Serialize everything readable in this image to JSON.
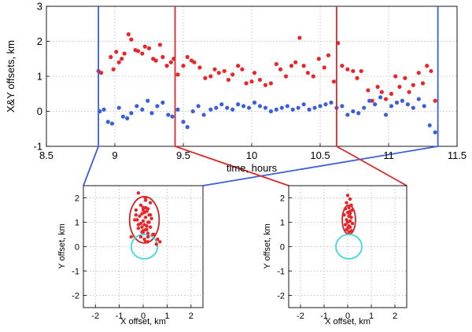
{
  "chart_data": [
    {
      "type": "scatter",
      "title": "",
      "xlabel": "time, hours",
      "ylabel": "X&Y offsets, km",
      "xlim": [
        8.5,
        11.5
      ],
      "ylim": [
        -1,
        3
      ],
      "xticks": [
        "8.5",
        "9",
        "9.5",
        "10",
        "10.5",
        "11",
        "11.5"
      ],
      "yticks": [
        "-1",
        "0",
        "1",
        "2",
        "3"
      ],
      "grid": true,
      "series": [
        {
          "name": "Y offset",
          "color": "#e8262b",
          "x": [
            8.88,
            8.9,
            8.97,
            8.99,
            9.01,
            9.03,
            9.05,
            9.07,
            9.1,
            9.12,
            9.15,
            9.17,
            9.2,
            9.22,
            9.25,
            9.28,
            9.3,
            9.33,
            9.35,
            9.38,
            9.41,
            9.43,
            9.46,
            9.5,
            9.53,
            9.56,
            9.58,
            9.62,
            9.66,
            9.7,
            9.73,
            9.76,
            9.8,
            9.83,
            9.86,
            9.9,
            9.93,
            9.96,
            10.0,
            10.02,
            10.06,
            10.1,
            10.14,
            10.18,
            10.21,
            10.25,
            10.29,
            10.32,
            10.35,
            10.38,
            10.41,
            10.45,
            10.49,
            10.53,
            10.56,
            10.6,
            10.63,
            10.66,
            10.7,
            10.74,
            10.77,
            10.8,
            10.85,
            10.88,
            10.92,
            10.95,
            10.98,
            11.02,
            11.05,
            11.08,
            11.12,
            11.15,
            11.18,
            11.22,
            11.25,
            11.28,
            11.31,
            11.34
          ],
          "values": [
            1.15,
            1.1,
            1.55,
            1.2,
            1.7,
            1.4,
            1.5,
            1.65,
            2.2,
            2.05,
            1.75,
            1.72,
            1.65,
            1.85,
            1.8,
            1.5,
            1.45,
            1.9,
            1.55,
            1.3,
            1.4,
            1.5,
            1.05,
            1.3,
            1.55,
            1.45,
            1.4,
            1.25,
            0.95,
            1.0,
            1.2,
            1.1,
            1.15,
            0.9,
            1.05,
            1.3,
            1.2,
            0.8,
            0.85,
            1.1,
            0.9,
            0.75,
            0.8,
            1.35,
            1.2,
            1.0,
            1.3,
            1.4,
            2.1,
            1.3,
            1.1,
            1.0,
            1.5,
            1.25,
            1.6,
            0.85,
            1.95,
            1.3,
            1.2,
            1.15,
            0.95,
            1.15,
            0.6,
            0.3,
            0.7,
            0.55,
            0.35,
            0.5,
            1.0,
            0.7,
            0.95,
            0.55,
            0.75,
            1.1,
            0.8,
            1.3,
            1.15,
            0.3
          ]
        },
        {
          "name": "X offset",
          "color": "#3b5fd9",
          "x": [
            8.89,
            8.92,
            8.95,
            8.98,
            9.03,
            9.06,
            9.09,
            9.12,
            9.16,
            9.2,
            9.24,
            9.27,
            9.31,
            9.35,
            9.39,
            9.42,
            9.46,
            9.5,
            9.53,
            9.57,
            9.61,
            9.65,
            9.7,
            9.74,
            9.78,
            9.82,
            9.86,
            9.9,
            9.94,
            9.98,
            10.02,
            10.06,
            10.1,
            10.14,
            10.18,
            10.22,
            10.26,
            10.3,
            10.34,
            10.38,
            10.42,
            10.46,
            10.5,
            10.54,
            10.58,
            10.62,
            10.66,
            10.7,
            10.74,
            10.78,
            10.82,
            10.86,
            10.9,
            10.94,
            10.98,
            11.02,
            11.06,
            11.1,
            11.14,
            11.18,
            11.22,
            11.26,
            11.3,
            11.34
          ],
          "values": [
            0.0,
            0.05,
            -0.3,
            -0.35,
            0.1,
            -0.15,
            -0.2,
            -0.05,
            0.15,
            0.05,
            0.3,
            -0.05,
            0.15,
            0.25,
            -0.1,
            -0.15,
            0.05,
            -0.3,
            -0.45,
            0.0,
            0.15,
            -0.1,
            0.05,
            0.1,
            0.2,
            0.1,
            0.05,
            0.2,
            0.15,
            0.1,
            0.25,
            0.15,
            0.1,
            0.0,
            0.05,
            0.1,
            0.15,
            0.05,
            0.1,
            0.2,
            0.05,
            0.1,
            0.15,
            0.2,
            0.25,
            0.1,
            0.15,
            -0.1,
            0.0,
            -0.05,
            0.1,
            0.3,
            0.2,
            0.4,
            -0.1,
            0.15,
            0.25,
            0.3,
            0.2,
            0.1,
            0.35,
            0.15,
            -0.4,
            -0.6
          ]
        }
      ]
    },
    {
      "type": "scatter",
      "title": "",
      "xlabel": "X offset, km",
      "ylabel": "Y offset, km",
      "xlim": [
        -2.5,
        2.5
      ],
      "ylim": [
        -2.5,
        2.5
      ],
      "xticks": [
        "-2",
        "-1",
        "0",
        "1",
        "2"
      ],
      "yticks": [
        "-2",
        "-1",
        "0",
        "1",
        "2"
      ],
      "grid": true,
      "ellipses": [
        {
          "name": "red error ellipse",
          "color": "#d02020",
          "cx": 0.05,
          "cy": 1.1,
          "rx": 0.62,
          "ry": 0.95
        },
        {
          "name": "cyan reference ellipse",
          "color": "#40d8e0",
          "cx": 0.05,
          "cy": 0.0,
          "rx": 0.55,
          "ry": 0.5
        }
      ],
      "series": [
        {
          "name": "offsets",
          "color": "#e8262b",
          "x": [
            -0.2,
            0.1,
            0.3,
            -0.1,
            0.0,
            0.2,
            -0.3,
            0.15,
            0.05,
            -0.05,
            0.25,
            -0.15,
            0.1,
            0.35,
            -0.25,
            0.0,
            0.2,
            -0.1,
            0.05,
            0.15,
            0.3,
            -0.2,
            0.1,
            0.0,
            -0.05,
            0.2,
            0.4,
            -0.3,
            0.1,
            0.25,
            -0.1,
            0.05,
            0.15,
            -0.2,
            0.3,
            0.0,
            0.2,
            -0.35,
            0.1,
            -0.05,
            0.6,
            0.7,
            0.45,
            -0.5,
            0.55,
            0.1,
            0.2,
            0.0
          ],
          "values": [
            2.2,
            2.0,
            1.8,
            1.7,
            1.6,
            1.55,
            1.5,
            1.45,
            1.4,
            1.35,
            1.3,
            1.25,
            1.2,
            1.15,
            1.1,
            1.05,
            1.0,
            0.95,
            0.9,
            0.85,
            0.8,
            0.75,
            0.7,
            0.65,
            0.6,
            0.55,
            0.5,
            1.3,
            1.9,
            1.0,
            0.4,
            0.3,
            0.7,
            0.9,
            1.3,
            1.5,
            0.2,
            1.1,
            1.6,
            0.8,
            0.3,
            0.2,
            0.5,
            0.4,
            0.1,
            0.2,
            0.4,
            0.6
          ]
        }
      ]
    },
    {
      "type": "scatter",
      "title": "",
      "xlabel": "X offset, km",
      "ylabel": "Y offset, km",
      "xlim": [
        -2.5,
        2.5
      ],
      "ylim": [
        -2.5,
        2.5
      ],
      "xticks": [
        "-2",
        "-1",
        "0",
        "1",
        "2"
      ],
      "yticks": [
        "-2",
        "-1",
        "0",
        "1",
        "2"
      ],
      "grid": true,
      "ellipses": [
        {
          "name": "red error ellipse",
          "color": "#d02020",
          "cx": 0.05,
          "cy": 1.1,
          "rx": 0.28,
          "ry": 0.6
        },
        {
          "name": "cyan reference ellipse",
          "color": "#40d8e0",
          "cx": 0.05,
          "cy": 0.0,
          "rx": 0.55,
          "ry": 0.5
        }
      ],
      "series": [
        {
          "name": "offsets",
          "color": "#e8262b",
          "x": [
            0.0,
            0.1,
            -0.05,
            0.15,
            0.05,
            -0.1,
            0.2,
            0.0,
            0.1,
            -0.15,
            0.05,
            0.15,
            -0.05,
            0.1,
            0.0,
            0.2,
            -0.1,
            0.05,
            0.1,
            0.0,
            -0.05,
            0.15,
            0.05,
            0.1
          ],
          "values": [
            2.1,
            1.95,
            1.8,
            1.7,
            1.6,
            1.55,
            1.5,
            1.4,
            1.35,
            1.3,
            1.25,
            1.2,
            1.1,
            1.05,
            1.0,
            0.95,
            0.9,
            0.85,
            0.8,
            0.75,
            0.7,
            0.65,
            0.6,
            1.45
          ]
        }
      ]
    }
  ],
  "colors": {
    "guide_blue": "#3b5fd9",
    "guide_red": "#d92b2b",
    "grid": "#b5b5b5"
  }
}
